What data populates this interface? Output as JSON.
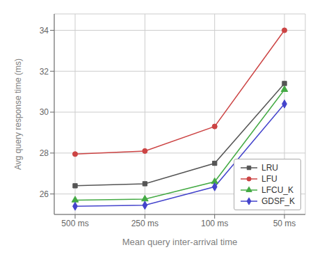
{
  "chart_data": {
    "type": "line",
    "categories": [
      "500 ms",
      "250 ms",
      "100 ms",
      "50 ms"
    ],
    "series": [
      {
        "name": "LRU",
        "color": "#555555",
        "marker": "square",
        "values": [
          26.4,
          26.5,
          27.5,
          31.4
        ]
      },
      {
        "name": "LFU",
        "color": "#cc4444",
        "marker": "circle",
        "values": [
          27.95,
          28.1,
          29.3,
          34.0
        ]
      },
      {
        "name": "LFCU_K",
        "color": "#44aa44",
        "marker": "triangle",
        "values": [
          25.7,
          25.75,
          26.6,
          31.1
        ]
      },
      {
        "name": "GDSF_K",
        "color": "#4444cc",
        "marker": "diamond",
        "values": [
          25.4,
          25.45,
          26.35,
          30.4
        ]
      }
    ],
    "xlabel": "Mean query inter-arrival time",
    "ylabel": "Avg query response time (ms)",
    "ylim": [
      25.0,
      34.8
    ],
    "yticks": [
      26,
      28,
      30,
      32,
      34
    ],
    "grid": true,
    "legend": "lower right"
  }
}
